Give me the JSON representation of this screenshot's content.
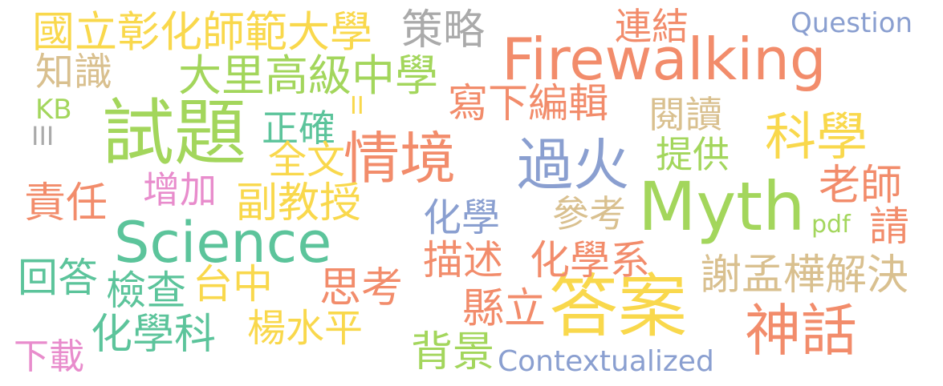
{
  "words": [
    {
      "id": "firewalking",
      "text": "Firewalking",
      "color": "#f28c6b"
    },
    {
      "id": "myth",
      "text": "Myth",
      "color": "#a3d65c"
    },
    {
      "id": "science",
      "text": "Science",
      "color": "#5cc49b"
    },
    {
      "id": "shiti",
      "text": "試題",
      "color": "#a3d65c"
    },
    {
      "id": "daan",
      "text": "答案",
      "color": "#f9d84c"
    },
    {
      "id": "qingjing",
      "text": "情境",
      "color": "#f28c6b"
    },
    {
      "id": "guohuo",
      "text": "過火",
      "color": "#8a9fd0"
    },
    {
      "id": "kexue",
      "text": "科學",
      "color": "#f9d84c"
    },
    {
      "id": "shenhua",
      "text": "神話",
      "color": "#f28c6b"
    },
    {
      "id": "ncue",
      "text": "國立彰化師範大學",
      "color": "#f9d84c"
    },
    {
      "id": "dali",
      "text": "大里高級中學",
      "color": "#a3d65c"
    },
    {
      "id": "celue",
      "text": "策略",
      "color": "#aaaaaa"
    },
    {
      "id": "lianjie",
      "text": "連結",
      "color": "#f28c6b"
    },
    {
      "id": "question",
      "text": "Question",
      "color": "#8a9fd0"
    },
    {
      "id": "zhishi",
      "text": "知識",
      "color": "#d9c08f"
    },
    {
      "id": "kb",
      "text": "KB",
      "color": "#a3d65c"
    },
    {
      "id": "iii",
      "text": "III",
      "color": "#aaaaaa"
    },
    {
      "id": "ii",
      "text": "II",
      "color": "#f9d84c"
    },
    {
      "id": "zhengque",
      "text": "正確",
      "color": "#5cc49b"
    },
    {
      "id": "quanwen",
      "text": "全文",
      "color": "#f9d84c"
    },
    {
      "id": "xiexia",
      "text": "寫下編輯",
      "color": "#f28c6b"
    },
    {
      "id": "yuedu",
      "text": "閱讀",
      "color": "#d9c08f"
    },
    {
      "id": "tigong",
      "text": "提供",
      "color": "#a3d65c"
    },
    {
      "id": "laoshi",
      "text": "老師",
      "color": "#f28c6b"
    },
    {
      "id": "zeren",
      "text": "責任",
      "color": "#f28c6b"
    },
    {
      "id": "zengjia",
      "text": "增加",
      "color": "#e88ccc"
    },
    {
      "id": "fujiaoshou",
      "text": "副教授",
      "color": "#f9d84c"
    },
    {
      "id": "huaxue",
      "text": "化學",
      "color": "#8a9fd0"
    },
    {
      "id": "cankao",
      "text": "參考",
      "color": "#d9c08f"
    },
    {
      "id": "pdf",
      "text": "pdf",
      "color": "#a3d65c"
    },
    {
      "id": "qing",
      "text": "請",
      "color": "#f28c6b"
    },
    {
      "id": "huida",
      "text": "回答",
      "color": "#5cc49b"
    },
    {
      "id": "miaoshu",
      "text": "描述",
      "color": "#f28c6b"
    },
    {
      "id": "huaxuexi",
      "text": "化學系",
      "color": "#f28c6b"
    },
    {
      "id": "xie",
      "text": "謝孟樺解決",
      "color": "#d9c08f"
    },
    {
      "id": "jiancha",
      "text": "檢查",
      "color": "#5cc49b"
    },
    {
      "id": "taizhong",
      "text": "台中",
      "color": "#f9d84c"
    },
    {
      "id": "sikao",
      "text": "思考",
      "color": "#f28c6b"
    },
    {
      "id": "xianli",
      "text": "縣立",
      "color": "#f28c6b"
    },
    {
      "id": "huaxueke",
      "text": "化學科",
      "color": "#5cc49b"
    },
    {
      "id": "yang",
      "text": "楊水平",
      "color": "#f9d84c"
    },
    {
      "id": "xiazai",
      "text": "下載",
      "color": "#e88ccc"
    },
    {
      "id": "beijing",
      "text": "背景",
      "color": "#a3d65c"
    },
    {
      "id": "contextualized",
      "text": "Contextualized",
      "color": "#8a9fd0"
    }
  ]
}
